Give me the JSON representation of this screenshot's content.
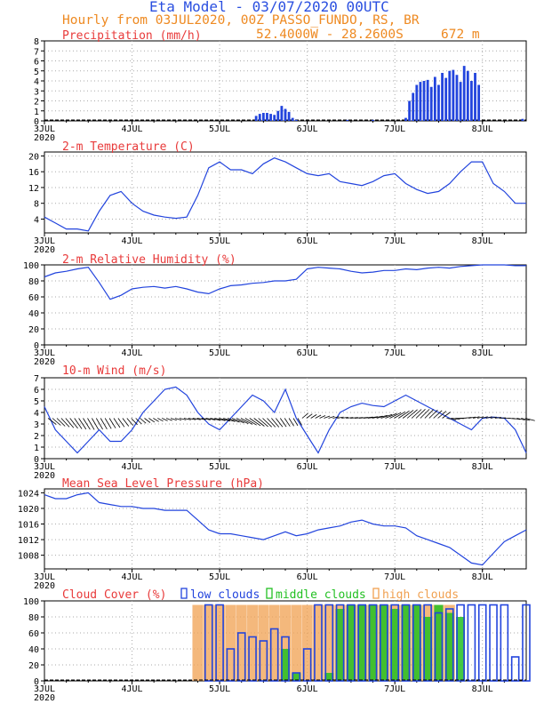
{
  "header": {
    "title": "Eta Model - 03/07/2020 00UTC",
    "subtitle": "Hourly from 03JUL2020, 00Z  PASSO_FUNDO, RS, BR",
    "coords": "52.4000W - 28.2600S",
    "elevation": "672  m"
  },
  "colors": {
    "title": "#2a4fe0",
    "header": "#ee8a22",
    "panel_title": "#e83a3a",
    "series": "#2244dd",
    "bar": "#2244dd",
    "wind_arrow": "#000000",
    "low_clouds": "#2244dd",
    "middle_clouds": "#22c022",
    "high_clouds": "#f0a050",
    "grid": "#aaaaaa"
  },
  "time_axis": {
    "unit": "hours from 03JUL2020 00Z",
    "range_hours": [
      0,
      132
    ],
    "ticks": [
      {
        "hour": 0,
        "label": "3JUL",
        "sub": "2020"
      },
      {
        "hour": 24,
        "label": "4JUL"
      },
      {
        "hour": 48,
        "label": "5JUL"
      },
      {
        "hour": 72,
        "label": "6JUL"
      },
      {
        "hour": 96,
        "label": "7JUL"
      },
      {
        "hour": 120,
        "label": "8JUL"
      }
    ]
  },
  "chart_data": [
    {
      "type": "bar",
      "title": "Precipitation (mm/h)",
      "ylim": [
        0,
        8
      ],
      "yticks": [
        0,
        1,
        2,
        3,
        4,
        5,
        6,
        7,
        8
      ],
      "x": [
        58,
        59,
        60,
        61,
        62,
        63,
        64,
        65,
        66,
        67,
        68,
        69,
        83,
        90,
        99,
        100,
        101,
        102,
        103,
        104,
        105,
        106,
        107,
        108,
        109,
        110,
        111,
        112,
        113,
        114,
        115,
        116,
        117,
        118,
        119,
        131
      ],
      "values": [
        0.5,
        0.7,
        0.8,
        0.8,
        0.7,
        0.6,
        1.0,
        1.5,
        1.2,
        0.9,
        0.3,
        0.1,
        0.1,
        0.1,
        0.3,
        2.0,
        2.8,
        3.6,
        3.9,
        4.0,
        4.1,
        3.4,
        4.4,
        3.6,
        4.8,
        4.3,
        5.0,
        5.1,
        4.6,
        3.9,
        5.5,
        5.0,
        4.0,
        4.8,
        3.6,
        0.2
      ]
    },
    {
      "type": "line",
      "title": "2-m Temperature (C)",
      "ylim": [
        0.5,
        21
      ],
      "yticks": [
        4,
        8,
        12,
        16,
        20
      ],
      "x": [
        0,
        3,
        6,
        9,
        12,
        15,
        18,
        21,
        24,
        27,
        30,
        33,
        36,
        39,
        42,
        45,
        48,
        51,
        54,
        57,
        60,
        63,
        66,
        69,
        72,
        75,
        78,
        81,
        84,
        87,
        90,
        93,
        96,
        99,
        102,
        105,
        108,
        111,
        114,
        117,
        120,
        123,
        126,
        129,
        132
      ],
      "values": [
        4.5,
        3,
        1.5,
        1.5,
        1,
        6,
        10,
        11,
        8,
        6,
        5,
        4.5,
        4.2,
        4.5,
        10,
        17,
        18.5,
        16.5,
        16.5,
        15.5,
        18,
        19.5,
        18.5,
        17,
        15.5,
        15,
        15.5,
        13.5,
        13,
        12.5,
        13.5,
        15,
        15.5,
        13,
        11.5,
        10.5,
        11,
        13,
        16,
        18.5,
        18.5,
        13,
        11,
        8,
        8
      ]
    },
    {
      "type": "line",
      "title": "2-m Relative Humidity (%)",
      "ylim": [
        0,
        100
      ],
      "yticks": [
        0,
        20,
        40,
        60,
        80,
        100
      ],
      "x": [
        0,
        3,
        6,
        9,
        12,
        15,
        18,
        21,
        24,
        27,
        30,
        33,
        36,
        39,
        42,
        45,
        48,
        51,
        54,
        57,
        60,
        63,
        66,
        69,
        72,
        75,
        78,
        81,
        84,
        87,
        90,
        93,
        96,
        99,
        102,
        105,
        108,
        111,
        114,
        117,
        120,
        123,
        126,
        129,
        132
      ],
      "values": [
        85,
        90,
        92,
        95,
        97,
        78,
        57,
        62,
        70,
        72,
        73,
        71,
        73,
        70,
        66,
        64,
        70,
        74,
        75,
        77,
        78,
        80,
        80,
        82,
        95,
        97,
        96,
        95,
        92,
        90,
        91,
        93,
        93,
        95,
        94,
        96,
        97,
        96,
        98,
        99,
        100,
        100,
        100,
        99,
        99
      ]
    },
    {
      "type": "line",
      "title": "10-m Wind (m/s)",
      "ylim": [
        0,
        7
      ],
      "yticks": [
        0,
        1,
        2,
        3,
        4,
        5,
        6,
        7
      ],
      "x": [
        0,
        3,
        6,
        9,
        12,
        15,
        18,
        21,
        24,
        27,
        30,
        33,
        36,
        39,
        42,
        45,
        48,
        51,
        54,
        57,
        60,
        63,
        66,
        69,
        72,
        75,
        78,
        81,
        84,
        87,
        90,
        93,
        96,
        99,
        102,
        105,
        108,
        111,
        114,
        117,
        120,
        123,
        126,
        129,
        132
      ],
      "values": [
        4.5,
        2.5,
        1.5,
        0.5,
        1.5,
        2.5,
        1.5,
        1.5,
        2.5,
        4,
        5,
        6,
        6.2,
        5.5,
        4,
        3,
        2.5,
        3.5,
        4.5,
        5.5,
        5,
        4,
        6,
        3.5,
        2,
        0.5,
        2.5,
        4,
        4.5,
        4.8,
        4.6,
        4.5,
        5,
        5.5,
        5,
        4.5,
        4,
        3.5,
        3,
        2.5,
        3.5,
        3.6,
        3.5,
        2.5,
        0.5
      ]
    },
    {
      "type": "line",
      "title": "Mean Sea Level Pressure (hPa)",
      "ylim": [
        1004.5,
        1025
      ],
      "yticks": [
        1008,
        1012,
        1016,
        1020,
        1024
      ],
      "x": [
        0,
        3,
        6,
        9,
        12,
        15,
        18,
        21,
        24,
        27,
        30,
        33,
        36,
        39,
        42,
        45,
        48,
        51,
        54,
        57,
        60,
        63,
        66,
        69,
        72,
        75,
        78,
        81,
        84,
        87,
        90,
        93,
        96,
        99,
        102,
        105,
        108,
        111,
        114,
        117,
        120,
        123,
        126,
        129,
        132
      ],
      "values": [
        1023.5,
        1022.5,
        1022.5,
        1023.5,
        1024,
        1021.5,
        1021,
        1020.5,
        1020.5,
        1020,
        1020,
        1019.5,
        1019.5,
        1019.5,
        1017,
        1014.5,
        1013.5,
        1013.5,
        1013,
        1012.5,
        1012,
        1013,
        1014,
        1013,
        1013.5,
        1014.5,
        1015,
        1015.5,
        1016.5,
        1017,
        1016,
        1015.5,
        1015.5,
        1015,
        1013,
        1012,
        1011,
        1010,
        1008,
        1006,
        1005.5,
        1008.5,
        1011.5,
        1013,
        1014.5
      ]
    },
    {
      "type": "bar",
      "title": "Cloud Cover (%)",
      "ylim": [
        0,
        100
      ],
      "yticks": [
        0,
        20,
        40,
        60,
        80,
        100
      ],
      "legend": [
        "low clouds",
        "middle clouds",
        "high clouds"
      ],
      "x": [
        42,
        45,
        48,
        51,
        54,
        57,
        60,
        63,
        66,
        69,
        72,
        75,
        78,
        81,
        84,
        87,
        90,
        93,
        96,
        99,
        102,
        105,
        108,
        111,
        114,
        117,
        120,
        123,
        126,
        129,
        132
      ],
      "series": [
        {
          "name": "low clouds",
          "values": [
            0,
            95,
            95,
            40,
            60,
            55,
            50,
            65,
            55,
            10,
            40,
            95,
            95,
            95,
            95,
            95,
            95,
            95,
            95,
            95,
            95,
            95,
            85,
            90,
            95,
            95,
            95,
            95,
            95,
            30,
            95
          ]
        },
        {
          "name": "middle clouds",
          "values": [
            0,
            0,
            0,
            0,
            0,
            0,
            0,
            0,
            40,
            10,
            0,
            0,
            10,
            90,
            95,
            95,
            95,
            95,
            90,
            95,
            95,
            80,
            95,
            85,
            80,
            0,
            0,
            0,
            0,
            0,
            0
          ]
        },
        {
          "name": "high clouds",
          "values": [
            95,
            95,
            95,
            95,
            95,
            95,
            95,
            95,
            95,
            95,
            95,
            95,
            95,
            95,
            95,
            95,
            95,
            95,
            95,
            95,
            95,
            95,
            95,
            95,
            0,
            0,
            0,
            0,
            0,
            0,
            0
          ]
        }
      ]
    }
  ]
}
